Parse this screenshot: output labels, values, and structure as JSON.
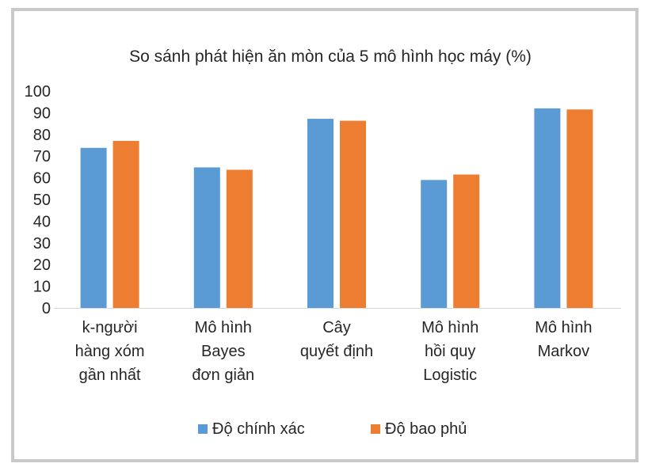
{
  "chart_data": {
    "type": "bar",
    "title": "So sánh phát hiện ăn mòn của 5 mô hình học máy (%)",
    "categories": [
      [
        "k-người",
        "hàng xóm",
        "gần nhất"
      ],
      [
        "Mô hình",
        "Bayes",
        "đơn giản"
      ],
      [
        "Cây",
        "quyết định"
      ],
      [
        "Mô hình",
        "hồi quy",
        "Logistic"
      ],
      [
        "Mô hình",
        "Markov"
      ]
    ],
    "series": [
      {
        "name": "Độ chính xác",
        "color": "#5b9bd5",
        "values": [
          73.8,
          64.8,
          87.2,
          59.0,
          92.0
        ]
      },
      {
        "name": "Độ bao phủ",
        "color": "#ed7d31",
        "values": [
          77.0,
          63.7,
          86.3,
          61.5,
          91.5
        ]
      }
    ],
    "yticks": [
      "0",
      "10",
      "20",
      "30",
      "40",
      "50",
      "60",
      "70",
      "80",
      "90",
      "100"
    ],
    "ylim": [
      0,
      100
    ],
    "grid": false,
    "legend": "bottom"
  }
}
